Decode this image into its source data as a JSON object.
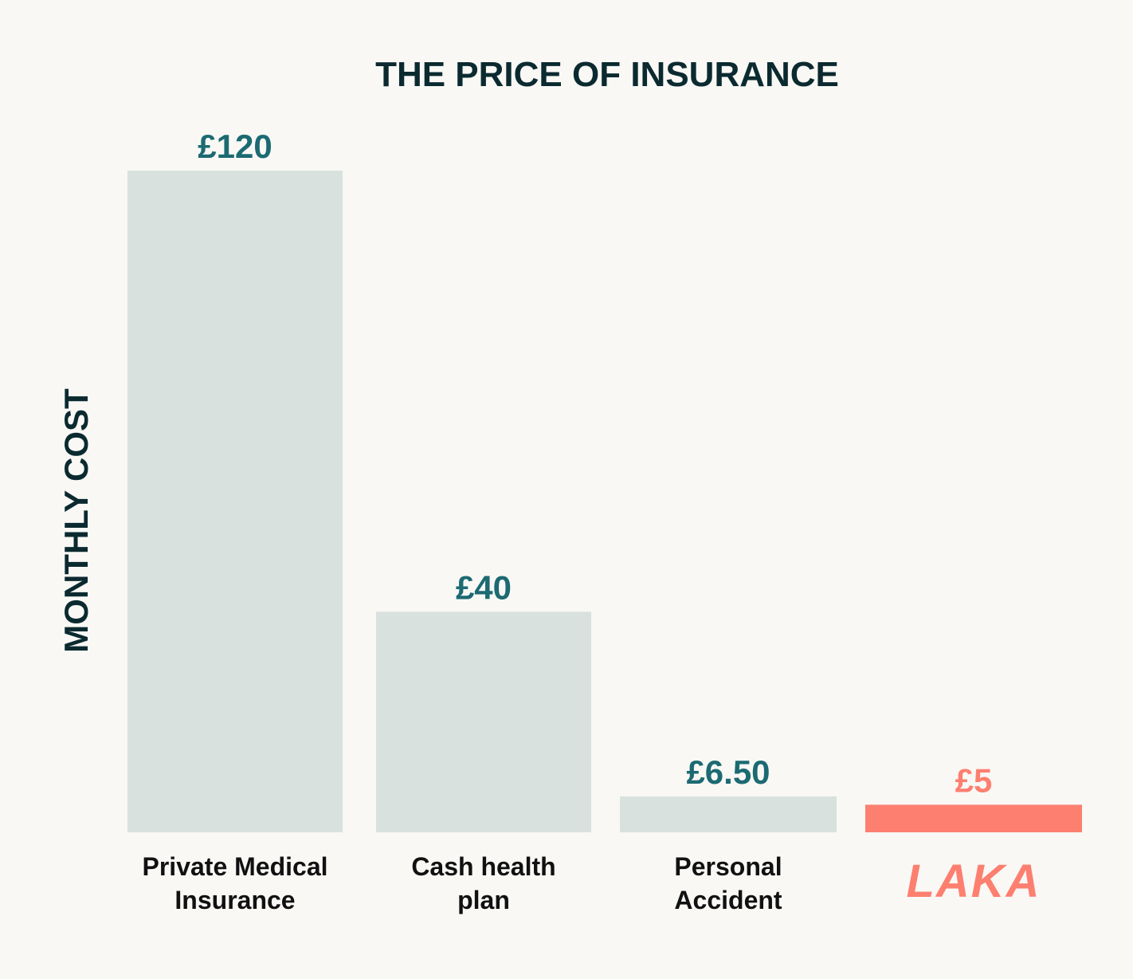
{
  "colors": {
    "background": "#f9f8f5",
    "title": "#0b2a30",
    "bar": "#d8e1de",
    "value_label": "#1c6a72",
    "category_label": "#111111",
    "highlight": "#fd7f70"
  },
  "chart_data": {
    "type": "bar",
    "title": "THE PRICE OF INSURANCE",
    "ylabel": "MONTHLY COST",
    "xlabel": "",
    "ylim": [
      0,
      120
    ],
    "grid": false,
    "legend": "none",
    "categories": [
      [
        "Private Medical",
        "Insurance"
      ],
      [
        "Cash health",
        "plan"
      ],
      [
        "Personal",
        "Accident"
      ],
      [
        "LAKA"
      ]
    ],
    "values": [
      120,
      40,
      6.5,
      5
    ],
    "value_labels": [
      "£120",
      "£40",
      "£6.50",
      "£5"
    ],
    "highlight_index": 3
  }
}
